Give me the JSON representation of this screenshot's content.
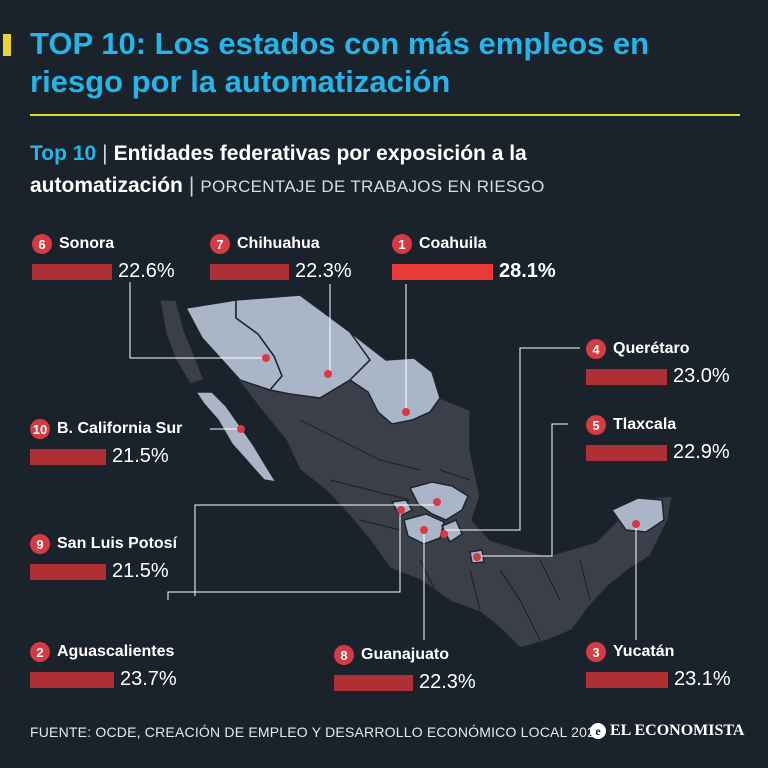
{
  "title": "TOP 10: Los estados con más empleos en riesgo por la automatización",
  "subtitle": {
    "lead": "Top 10",
    "separator": "|",
    "main": "Entidades federativas por exposición a la automatización",
    "note": "PORCENTAJE DE TRABAJOS EN RIESGO"
  },
  "colors": {
    "title": "#25b5e8",
    "accent": "#e8d532",
    "bar": "#ae2f36",
    "bar_top": "#ea3a3a",
    "badge": "#d63a42",
    "map_highlight": "#aab5c7",
    "map_base": "#3b3f4a",
    "background": "#1a222b"
  },
  "chart_data": {
    "type": "bar",
    "unit": "%",
    "categories": [
      "Coahuila",
      "Aguascalientes",
      "Yucatán",
      "Querétaro",
      "Tlaxcala",
      "Sonora",
      "Chihuahua",
      "Guanajuato",
      "San Luis Potosí",
      "B. California Sur"
    ],
    "values": [
      28.1,
      23.7,
      23.1,
      23.0,
      22.9,
      22.6,
      22.3,
      22.3,
      21.5,
      21.5
    ],
    "items": [
      {
        "rank": "6",
        "name": "Sonora",
        "value": 22.6,
        "value_label": "22.6%"
      },
      {
        "rank": "7",
        "name": "Chihuahua",
        "value": 22.3,
        "value_label": "22.3%"
      },
      {
        "rank": "1",
        "name": "Coahuila",
        "value": 28.1,
        "value_label": "28.1%"
      },
      {
        "rank": "4",
        "name": "Querétaro",
        "value": 23.0,
        "value_label": "23.0%"
      },
      {
        "rank": "10",
        "name": "B. California Sur",
        "value": 21.5,
        "value_label": "21.5%"
      },
      {
        "rank": "5",
        "name": "Tlaxcala",
        "value": 22.9,
        "value_label": "22.9%"
      },
      {
        "rank": "9",
        "name": "San Luis Potosí",
        "value": 21.5,
        "value_label": "21.5%"
      },
      {
        "rank": "2",
        "name": "Aguascalientes",
        "value": 23.7,
        "value_label": "23.7%"
      },
      {
        "rank": "8",
        "name": "Guanajuato",
        "value": 22.3,
        "value_label": "22.3%"
      },
      {
        "rank": "3",
        "name": "Yucatán",
        "value": 23.1,
        "value_label": "23.1%"
      }
    ]
  },
  "footer": {
    "source": "FUENTE: OCDE, CREACIÓN DE EMPLEO Y DESARROLLO ECONÓMICO LOCAL 2024",
    "brand": "EL ECONOMISTA",
    "brand_icon": "e-logo-icon"
  }
}
